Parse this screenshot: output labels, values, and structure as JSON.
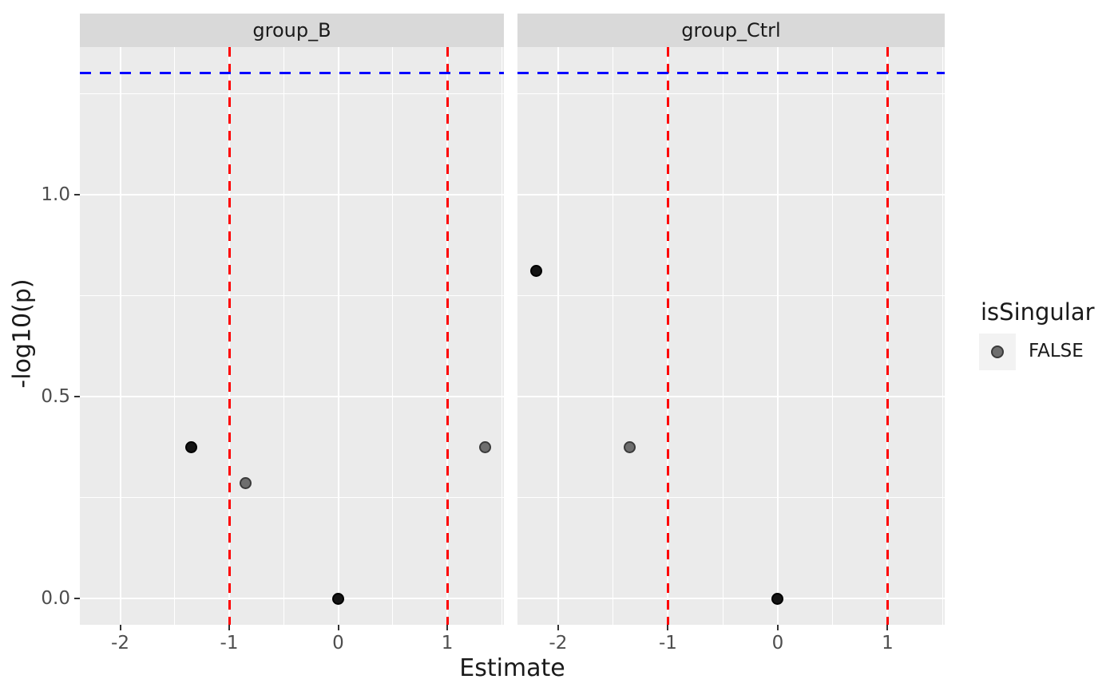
{
  "figure": {
    "background": "#FFFFFF",
    "panel_bg": "#EBEBEB",
    "strip_bg": "#D9D9D9",
    "grid_color": "#FFFFFF",
    "tick_color": "#333333",
    "tick_label_color": "#4D4D4D",
    "legend_key_bg": "#F2F2F2"
  },
  "chart_data": {
    "type": "scatter",
    "xlabel": "Estimate",
    "ylabel": "-log10(p)",
    "xlim": [
      -2.37,
      1.52
    ],
    "ylim": [
      -0.065,
      1.365
    ],
    "x_ticks": [
      -2,
      -1,
      0,
      1
    ],
    "x_tick_labels": [
      "-2",
      "-1",
      "0",
      "1"
    ],
    "y_ticks": [
      0.0,
      0.5,
      1.0
    ],
    "y_tick_labels": [
      "0.0",
      "0.5",
      "1.0"
    ],
    "grid": "major+minor",
    "facets": [
      {
        "label": "group_B",
        "points": [
          {
            "x": -1.35,
            "y": 0.375,
            "shade": "dark"
          },
          {
            "x": -0.85,
            "y": 0.285,
            "shade": "gray"
          },
          {
            "x": 0.0,
            "y": 0.0,
            "shade": "dark"
          },
          {
            "x": 1.35,
            "y": 0.375,
            "shade": "gray"
          }
        ]
      },
      {
        "label": "group_Ctrl",
        "points": [
          {
            "x": -2.2,
            "y": 0.81,
            "shade": "dark"
          },
          {
            "x": -1.35,
            "y": 0.375,
            "shade": "gray"
          },
          {
            "x": 0.0,
            "y": 0.0,
            "shade": "dark"
          }
        ]
      }
    ],
    "point_styles": {
      "dark": {
        "fill": "#141414",
        "stroke": "#000000"
      },
      "gray": {
        "fill": "#6E6E6E",
        "stroke": "#3A3A3A"
      }
    },
    "reference_lines": {
      "hline": {
        "y": 1.3,
        "color": "#0000FF",
        "style": "dashed"
      },
      "vlines": [
        {
          "x": -1,
          "color": "#FF0000",
          "style": "dashed"
        },
        {
          "x": 1,
          "color": "#FF0000",
          "style": "dashed"
        }
      ]
    },
    "legend": {
      "position": "right",
      "title": "isSingular",
      "entries": [
        {
          "label": "FALSE",
          "shade": "gray"
        }
      ]
    }
  }
}
